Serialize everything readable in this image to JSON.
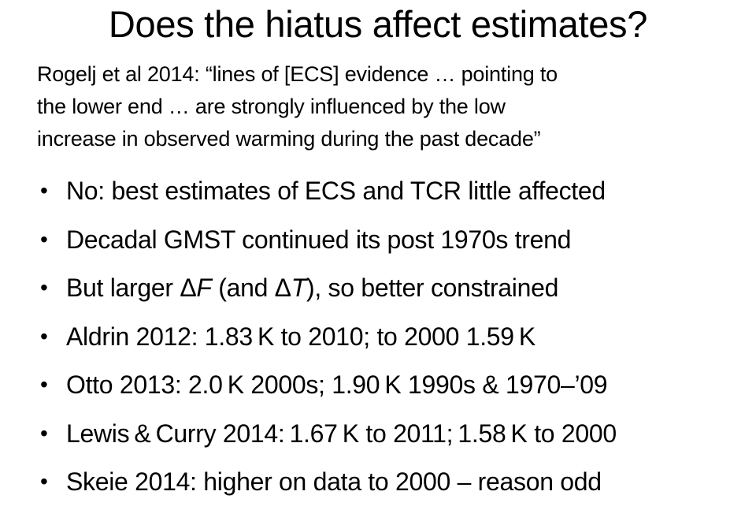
{
  "slide": {
    "title": "Does the hiatus affect estimates?",
    "quote_lines": [
      "Rogelj et al 2014: “lines of [ECS] evidence … pointing to",
      "the lower end … are strongly influenced by the low",
      "increase in observed warming during the past decade”"
    ],
    "bullet_symbol": "•",
    "bullets": [
      {
        "text": "No: best estimates of ECS and TCR little affected"
      },
      {
        "text": "Decadal GMST continued its post 1970s trend"
      },
      {
        "text": "But larger ΔF (and ΔT), so better constrained",
        "parts": {
          "a": "But larger Δ",
          "b_italic": "F",
          "c": " (and Δ",
          "d_italic": "T",
          "e": "), so better constrained"
        }
      },
      {
        "text": "Aldrin 2012: 1.83 K to 2010; to 2000 1.59 K"
      },
      {
        "text": "Otto 2013: 2.0 K 2000s; 1.90 K 1990s & 1970–’09"
      },
      {
        "text": "Lewis & Curry 2014: 1.67 K to 2011; 1.58 K to 2000"
      },
      {
        "text": "Skeie 2014: higher on data to 2000 – reason odd"
      }
    ]
  }
}
